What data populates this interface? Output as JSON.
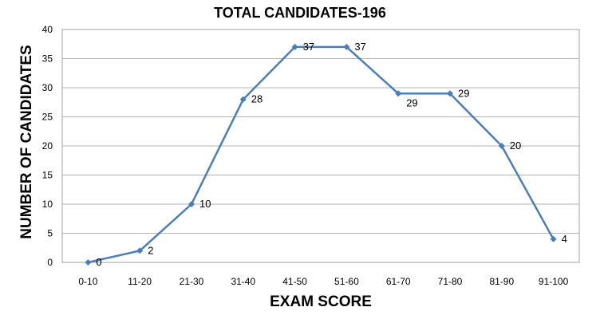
{
  "chart_data": {
    "type": "line",
    "title": "TOTAL CANDIDATES-196",
    "xlabel": "EXAM SCORE",
    "ylabel": "NUMBER OF CANDIDATES",
    "categories": [
      "0-10",
      "11-20",
      "21-30",
      "31-40",
      "41-50",
      "51-60",
      "61-70",
      "71-80",
      "81-90",
      "91-100"
    ],
    "series": [
      {
        "values": [
          0,
          2,
          10,
          28,
          37,
          37,
          29,
          29,
          20,
          4
        ]
      }
    ],
    "ylim": [
      0,
      40
    ],
    "yticks": [
      0,
      5,
      10,
      15,
      20,
      25,
      30,
      35,
      40
    ],
    "grid": true,
    "data_labels": true,
    "line_color": "#4a7ebb",
    "marker": "diamond"
  }
}
